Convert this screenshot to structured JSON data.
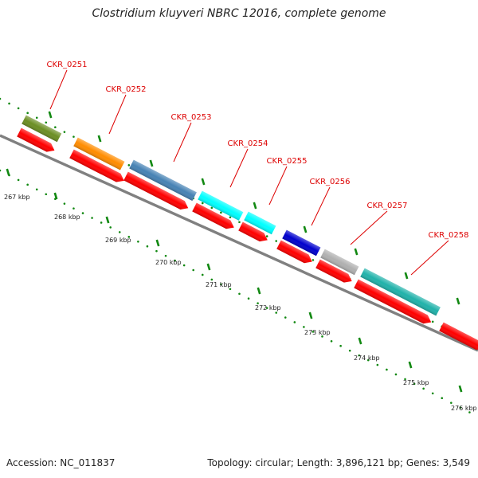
{
  "title": "Clostridium kluyveri NBRC 12016, complete genome",
  "footer": {
    "accession": "Accession: NC_011837",
    "summary": "Topology: circular; Length: 3,896,121 bp; Genes: 3,549"
  },
  "colors": {
    "locus_label": "#dd0000",
    "cds_arrow": "#ff0000",
    "tick": "#118811",
    "backbone": "#808080"
  },
  "genes": [
    {
      "locus": "CKR_0251",
      "color": "#6b8e23"
    },
    {
      "locus": "CKR_0252",
      "color": "#ff8c00"
    },
    {
      "locus": "CKR_0253",
      "color": "#4682b4"
    },
    {
      "locus": "CKR_0254",
      "color": "#00ffff"
    },
    {
      "locus": "CKR_0255",
      "color": "#00ffff"
    },
    {
      "locus": "CKR_0256",
      "color": "#0000cd"
    },
    {
      "locus": "CKR_0257",
      "color": "#b0b0b0"
    },
    {
      "locus": "CKR_0258",
      "color": "#20b2aa"
    }
  ],
  "scale_labels": [
    "267 kbp",
    "268 kbp",
    "269 kbp",
    "270 kbp",
    "271 kbp",
    "272 kbp",
    "273 kbp",
    "274 kbp",
    "275 kbp",
    "276 kbp"
  ]
}
